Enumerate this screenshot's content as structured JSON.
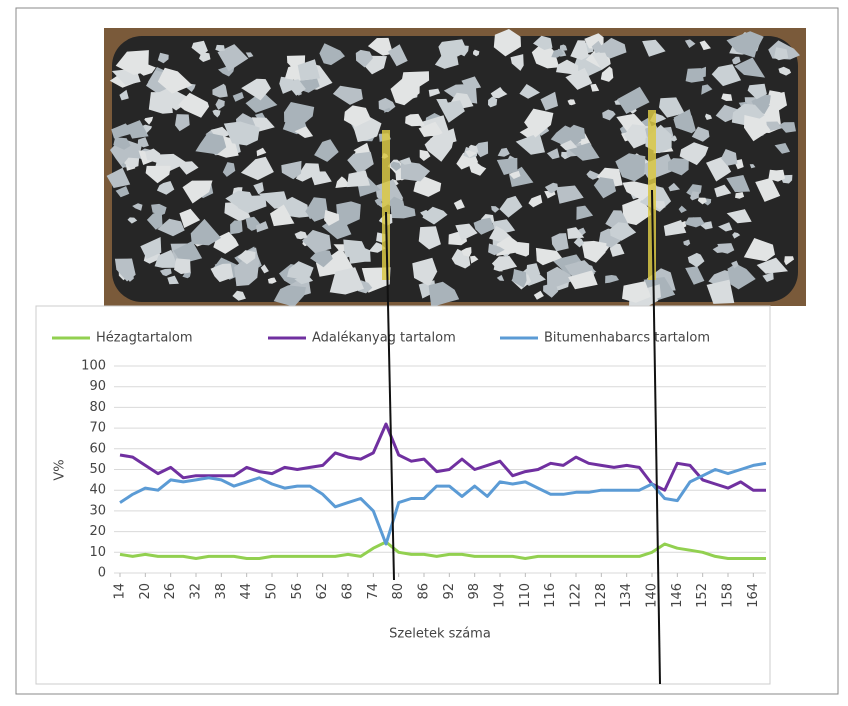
{
  "chart_data": {
    "type": "line",
    "x": [
      14,
      17,
      20,
      23,
      26,
      29,
      32,
      35,
      38,
      41,
      44,
      47,
      50,
      53,
      56,
      59,
      62,
      65,
      68,
      71,
      74,
      77,
      80,
      83,
      86,
      89,
      92,
      95,
      98,
      101,
      104,
      107,
      110,
      113,
      116,
      119,
      122,
      125,
      128,
      131,
      134,
      137,
      140,
      143,
      146,
      149,
      152,
      155,
      158,
      161,
      164,
      167
    ],
    "series": [
      {
        "name": "Hézagtartalom",
        "color": "#92d050",
        "values": [
          9,
          8,
          9,
          8,
          8,
          8,
          7,
          8,
          8,
          8,
          7,
          7,
          8,
          8,
          8,
          8,
          8,
          8,
          9,
          8,
          12,
          15,
          10,
          9,
          9,
          8,
          9,
          9,
          8,
          8,
          8,
          8,
          7,
          8,
          8,
          8,
          8,
          8,
          8,
          8,
          8,
          8,
          10,
          14,
          12,
          11,
          10,
          8,
          7,
          7,
          7,
          7
        ]
      },
      {
        "name": "Adalékanyag tartalom",
        "color": "#7030a0",
        "values": [
          57,
          56,
          52,
          48,
          51,
          46,
          47,
          47,
          47,
          47,
          51,
          49,
          48,
          51,
          50,
          51,
          52,
          58,
          56,
          55,
          58,
          72,
          57,
          54,
          55,
          49,
          50,
          55,
          50,
          52,
          54,
          47,
          49,
          50,
          53,
          52,
          56,
          53,
          52,
          51,
          52,
          51,
          43,
          40,
          53,
          52,
          45,
          43,
          41,
          44,
          40,
          40
        ]
      },
      {
        "name": "Bitumenhabarcs tartalom",
        "color": "#5b9bd5",
        "values": [
          34,
          38,
          41,
          40,
          45,
          44,
          45,
          46,
          45,
          42,
          44,
          46,
          43,
          41,
          42,
          42,
          38,
          32,
          34,
          36,
          30,
          14,
          34,
          36,
          36,
          42,
          42,
          37,
          42,
          37,
          44,
          43,
          44,
          41,
          38,
          38,
          39,
          39,
          40,
          40,
          40,
          40,
          43,
          36,
          35,
          44,
          47,
          50,
          48,
          50,
          52,
          53
        ]
      }
    ],
    "xlim": [
      14,
      167
    ],
    "xticks": [
      14,
      20,
      26,
      32,
      38,
      44,
      50,
      56,
      62,
      68,
      74,
      80,
      86,
      92,
      98,
      104,
      110,
      116,
      122,
      128,
      134,
      140,
      146,
      152,
      158,
      164
    ],
    "ylim": [
      0,
      100
    ],
    "yticks": [
      0,
      10,
      20,
      30,
      40,
      50,
      60,
      70,
      80,
      90,
      100
    ],
    "ylabel": "V%",
    "xlabel": "Szeletek száma",
    "grid": true,
    "legend": "top"
  }
}
